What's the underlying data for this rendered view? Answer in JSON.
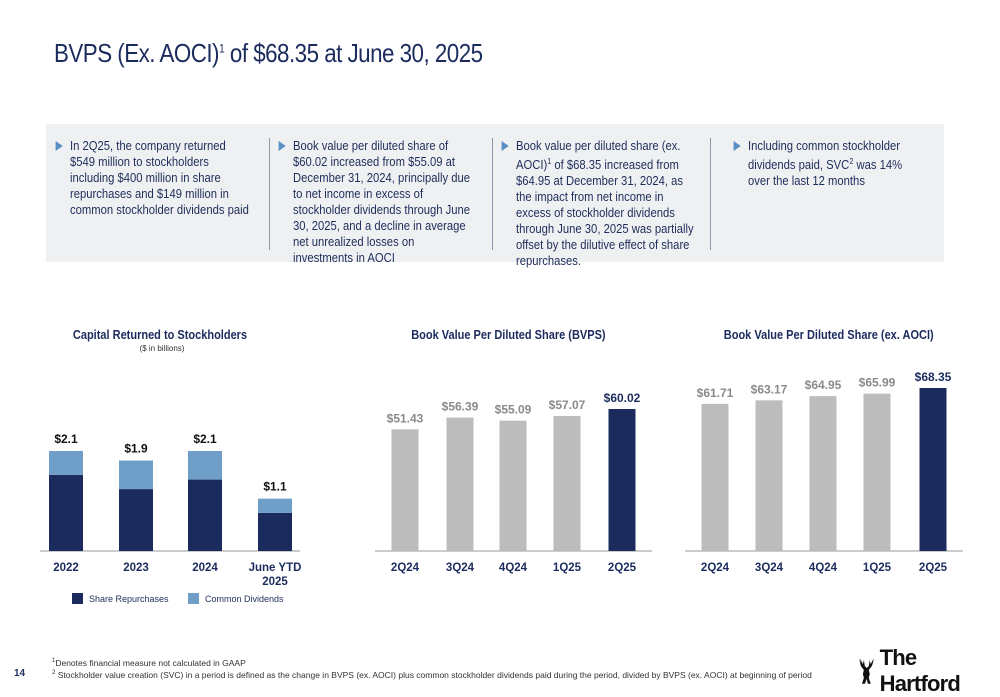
{
  "title": {
    "main": "BVPS (Ex. AOCI)",
    "sup": "1",
    "rest": " of $68.35 at June 30, 2025"
  },
  "bullets": [
    {
      "text": "In 2Q25, the company returned $549 million to stockholders including $400 million in share repurchases and $149 million in common stockholder dividends paid"
    },
    {
      "text": "Book value per diluted share of $60.02 increased from $55.09 at December 31, 2024, principally due to net income in excess of stockholder dividends through June 30, 2025, and a decline in average net unrealized losses on investments in AOCI"
    },
    {
      "text_a": "Book value per diluted share (ex. AOCI)",
      "sup": "1",
      "text_b": " of $68.35 increased from $64.95 at December 31, 2024, as the impact from net income in excess of stockholder dividends through June 30, 2025 was partially offset by the dilutive effect of share repurchases."
    },
    {
      "text_a": "Including common stockholder dividends paid, SVC",
      "sup": "2",
      "text_b": " was 14% over the last 12 months"
    }
  ],
  "colors": {
    "navy": "#1c2b5e",
    "light_blue": "#6f9fc8",
    "gray_bar": "#bcbcbc",
    "highlight_label": "#1c2b5e",
    "gray_label": "#8a8a8a"
  },
  "chart_data": [
    {
      "type": "bar",
      "stacked": true,
      "title": "Capital Returned to Stockholders",
      "subtitle": "($ in billions)",
      "categories": [
        "2022",
        "2023",
        "2024",
        "June YTD 2025"
      ],
      "series": [
        {
          "name": "Share Repurchases",
          "values": [
            1.6,
            1.3,
            1.5,
            0.8
          ]
        },
        {
          "name": "Common Dividends",
          "values": [
            0.5,
            0.6,
            0.6,
            0.3
          ]
        }
      ],
      "total_labels": [
        "$2.1",
        "$1.9",
        "$2.1",
        "$1.1"
      ],
      "ylim": [
        0,
        2.1
      ],
      "legend": "bottom"
    },
    {
      "type": "bar",
      "title": "Book Value Per Diluted Share (BVPS)",
      "categories": [
        "2Q24",
        "3Q24",
        "4Q24",
        "1Q25",
        "2Q25"
      ],
      "values": [
        51.43,
        56.39,
        55.09,
        57.07,
        60.02
      ],
      "value_labels": [
        "$51.43",
        "$56.39",
        "$55.09",
        "$57.07",
        "$60.02"
      ],
      "highlight_index": 4
    },
    {
      "type": "bar",
      "title": "Book Value Per Diluted Share (ex. AOCI)",
      "categories": [
        "2Q24",
        "3Q24",
        "4Q24",
        "1Q25",
        "2Q25"
      ],
      "values": [
        61.71,
        63.17,
        64.95,
        65.99,
        68.35
      ],
      "value_labels": [
        "$61.71",
        "$63.17",
        "$64.95",
        "$65.99",
        "$68.35"
      ],
      "highlight_index": 4
    }
  ],
  "legend": {
    "repurchases": "Share Repurchases",
    "dividends": "Common Dividends"
  },
  "footnotes": [
    {
      "sup": "1",
      "text": "Denotes financial measure not calculated in GAAP"
    },
    {
      "sup": "2",
      "text": " Stockholder value creation (SVC) in a period is defined as the change in BVPS (ex. AOCI) plus common stockholder dividends paid during the period, divided by BVPS (ex. AOCI) at beginning of period"
    }
  ],
  "page_number": "14",
  "logo_text": "The Hartford"
}
